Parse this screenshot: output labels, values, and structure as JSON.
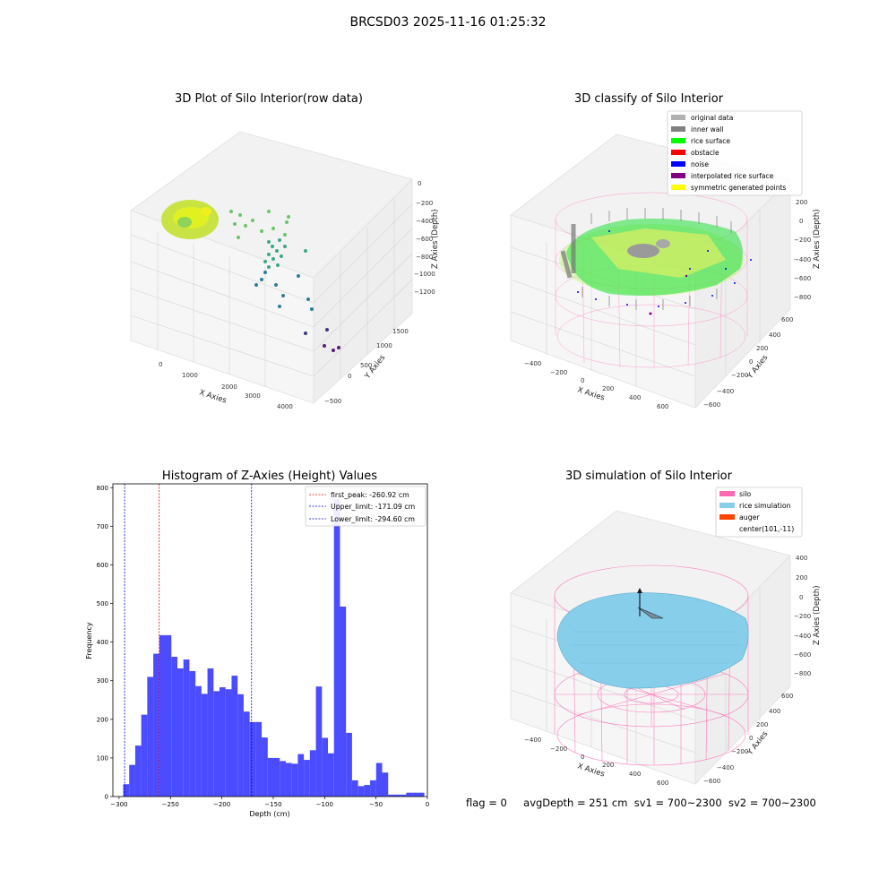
{
  "page": {
    "suptitle": "BRCSD03 2025-11-16 01:25:32",
    "status_flag": "flag = 0",
    "status_avg": "avgDepth = 251 cm",
    "status_sv1": "sv1 = 700~2300",
    "status_sv2": "sv2 = 700~2300"
  },
  "colors": {
    "hist_bar": "#4b4bff",
    "first_peak_line": "#ff0000",
    "limit_line": "#0000cc",
    "silo_wire": "#ff69b4",
    "rice_surface": "#87ceeb",
    "auger": "#ff4500",
    "legend_original": "#b0b0b0",
    "legend_inner_wall": "#808080",
    "legend_rice_surface": "#00ff00",
    "legend_obstacle": "#ff0000",
    "legend_noise": "#0000ff",
    "legend_interpolated": "#800080",
    "legend_symmetric": "#ffff00"
  },
  "chart_data": [
    {
      "type": "scatter",
      "title": "3D Plot of Silo Interior(row data)",
      "xlabel": "X Axies",
      "ylabel": "Y Axies",
      "zlabel": "Z Axies (Depth)",
      "x_ticks": [
        "0",
        "1000",
        "2000",
        "3000",
        "4000"
      ],
      "y_ticks": [
        "−500",
        "0",
        "500",
        "1000",
        "1500"
      ],
      "z_ticks": [
        "0",
        "−200",
        "−400",
        "−600",
        "−800",
        "−1000",
        "−1200"
      ]
    },
    {
      "type": "scatter",
      "title": "3D classify of Silo Interior",
      "xlabel": "X Axies",
      "ylabel": "Y Axies",
      "zlabel": "Z Axies (Depth)",
      "x_ticks": [
        "−400",
        "−200",
        "0",
        "200",
        "400",
        "600"
      ],
      "y_ticks": [
        "−600",
        "−400",
        "−200",
        "0",
        "200",
        "400",
        "600"
      ],
      "z_ticks": [
        "200",
        "0",
        "−200",
        "−400",
        "−600",
        "−800"
      ],
      "legend": [
        "original data",
        "inner wall",
        "rice surface",
        "obstacle",
        "noise",
        "interpolated rice surface",
        "symmetric generated points"
      ]
    },
    {
      "type": "bar",
      "title": "Histogram of Z-Axies (Height) Values",
      "xlabel": "Depth (cm)",
      "ylabel": "Frequency",
      "xlim": [
        -306,
        0
      ],
      "ylim": [
        0,
        810
      ],
      "x_ticks": [
        -300,
        -250,
        -200,
        -150,
        -100,
        -50,
        0
      ],
      "x_tick_labels": [
        "−300",
        "−250",
        "−200",
        "−150",
        "−100",
        "−50",
        "0"
      ],
      "y_ticks": [
        0,
        100,
        200,
        300,
        400,
        500,
        600,
        700,
        800
      ],
      "bin_start": -296,
      "bin_width": 5.86,
      "values": [
        32,
        82,
        132,
        212,
        310,
        370,
        418,
        418,
        362,
        332,
        355,
        325,
        286,
        266,
        332,
        273,
        283,
        278,
        313,
        265,
        220,
        193,
        193,
        153,
        100,
        100,
        92,
        87,
        85,
        110,
        95,
        120,
        285,
        152,
        112,
        770,
        492,
        165,
        42,
        27,
        30,
        42,
        87,
        62,
        5,
        5,
        5,
        10,
        10,
        10
      ],
      "legend": [
        {
          "label": "first_peak: -260.92 cm",
          "value": -260.92
        },
        {
          "label": "Upper_limit: -171.09 cm",
          "value": -171.09
        },
        {
          "label": "Lower_limit: -294.60 cm",
          "value": -294.6
        }
      ]
    },
    {
      "type": "area",
      "title": "3D simulation of Silo Interior",
      "xlabel": "X Axies",
      "ylabel": "Y Axies",
      "zlabel": "Z Axies (Depth)",
      "x_ticks": [
        "−400",
        "−200",
        "0",
        "200",
        "400",
        "600"
      ],
      "y_ticks": [
        "−600",
        "−400",
        "−200",
        "0",
        "200",
        "400",
        "600"
      ],
      "z_ticks": [
        "400",
        "200",
        "0",
        "−200",
        "−400",
        "−600",
        "−800"
      ],
      "legend": [
        "silo",
        "rice simulation",
        "auger",
        "center(101,-11)"
      ]
    }
  ]
}
